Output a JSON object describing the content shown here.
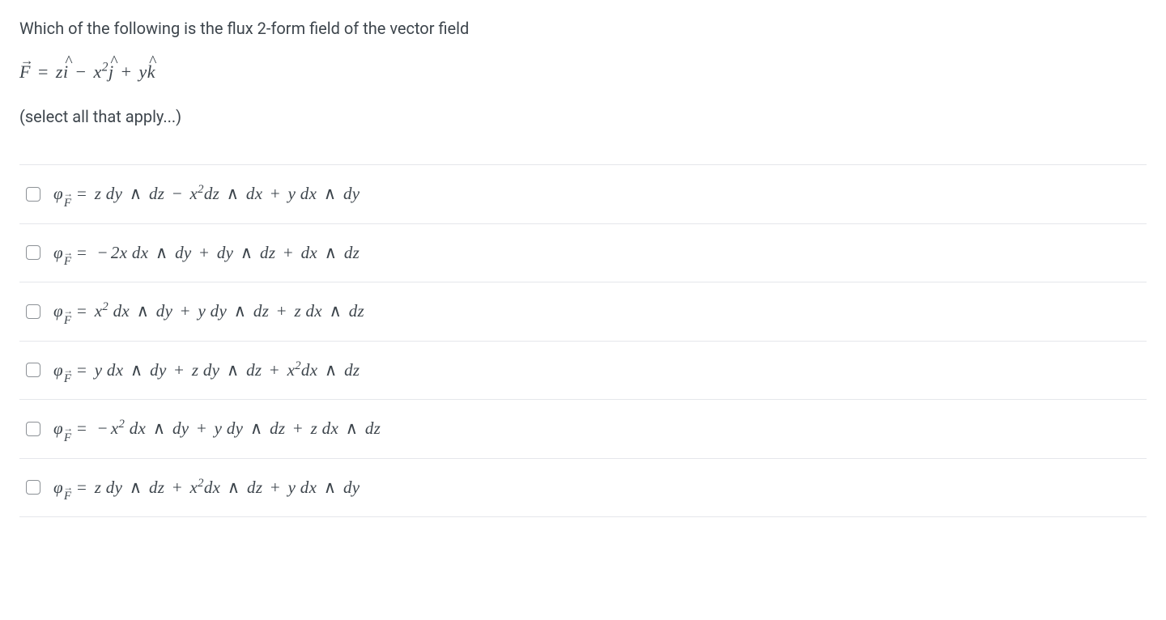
{
  "question": {
    "prompt": "Which of the following is the flux 2-form field of the vector field",
    "formula_html": "<span class=\"vec\">F</span> <span class=\"op\">=</span> z<span class=\"hat\">i</span> <span class=\"op\">−</span> x<sup>2</sup><span class=\"hat\">j</span> <span class=\"op\">+</span> y<span class=\"hat\">k</span>",
    "hint": "(select all that apply...)"
  },
  "options": [
    {
      "id": "opt-a",
      "html": "<span class=\"phi-sub\">φ<span class=\"subvec\">F</span></span>&nbsp;&nbsp;<span class=\"op\">=</span> z <span class=\"d\">dy</span> <span class=\"wedge\">∧</span> <span class=\"d\">dz</span> <span class=\"op\">−</span> x<sup>2</sup><span class=\"d\">dz</span> <span class=\"wedge\">∧</span> <span class=\"d\">dx</span> <span class=\"op\">+</span> y <span class=\"d\">dx</span> <span class=\"wedge\">∧</span> <span class=\"d\">dy</span>"
    },
    {
      "id": "opt-b",
      "html": "<span class=\"phi-sub\">φ<span class=\"subvec\">F</span></span>&nbsp;&nbsp;<span class=\"op\">=</span> <span class=\"op\">−</span>2x <span class=\"d\">dx</span> <span class=\"wedge\">∧</span> <span class=\"d\">dy</span> <span class=\"op\">+</span> <span class=\"d\">dy</span> <span class=\"wedge\">∧</span> <span class=\"d\">dz</span> <span class=\"op\">+</span> <span class=\"d\">dx</span> <span class=\"wedge\">∧</span> <span class=\"d\">dz</span>"
    },
    {
      "id": "opt-c",
      "html": "<span class=\"phi-sub\">φ<span class=\"subvec\">F</span></span>&nbsp;&nbsp;<span class=\"op\">=</span> x<sup>2</sup> <span class=\"d\">dx</span> <span class=\"wedge\">∧</span> <span class=\"d\">dy</span> <span class=\"op\">+</span> y <span class=\"d\">dy</span> <span class=\"wedge\">∧</span> <span class=\"d\">dz</span> <span class=\"op\">+</span> z <span class=\"d\">dx</span> <span class=\"wedge\">∧</span> <span class=\"d\">dz</span>"
    },
    {
      "id": "opt-d",
      "html": "<span class=\"phi-sub\">φ<span class=\"subvec\">F</span></span>&nbsp;&nbsp;<span class=\"op\">=</span> y <span class=\"d\">dx</span> <span class=\"wedge\">∧</span> <span class=\"d\">dy</span> <span class=\"op\">+</span> z <span class=\"d\">dy</span> <span class=\"wedge\">∧</span> <span class=\"d\">dz</span> <span class=\"op\">+</span> x<sup>2</sup><span class=\"d\">dx</span> <span class=\"wedge\">∧</span> <span class=\"d\">dz</span>"
    },
    {
      "id": "opt-e",
      "html": "<span class=\"phi-sub\">φ<span class=\"subvec\">F</span></span>&nbsp;&nbsp;<span class=\"op\">=</span> <span class=\"op\">−</span>x<sup>2</sup> <span class=\"d\">dx</span> <span class=\"wedge\">∧</span> <span class=\"d\">dy</span> <span class=\"op\">+</span> y <span class=\"d\">dy</span> <span class=\"wedge\">∧</span> <span class=\"d\">dz</span> <span class=\"op\">+</span> z <span class=\"d\">dx</span> <span class=\"wedge\">∧</span> <span class=\"d\">dz</span>"
    },
    {
      "id": "opt-f",
      "html": "<span class=\"phi-sub\">φ<span class=\"subvec\">F</span></span>&nbsp;&nbsp;<span class=\"op\">=</span> z <span class=\"d\">dy</span> <span class=\"wedge\">∧</span> <span class=\"d\">dz</span> <span class=\"op\">+</span> x<sup>2</sup><span class=\"d\">dx</span> <span class=\"wedge\">∧</span> <span class=\"d\">dz</span> <span class=\"op\">+</span> y <span class=\"d\">dx</span> <span class=\"wedge\">∧</span> <span class=\"d\">dy</span>"
    }
  ],
  "style": {
    "text_color": "#3d454c",
    "divider_color": "#e5e7eb",
    "checkbox_border": "#8c9196",
    "background": "#ffffff",
    "body_font": "-apple-system, BlinkMacSystemFont, 'Segoe UI', Roboto, Helvetica, Arial, sans-serif",
    "math_font": "Times New Roman, Times, serif",
    "question_fontsize": 20,
    "math_fontsize": 21
  }
}
